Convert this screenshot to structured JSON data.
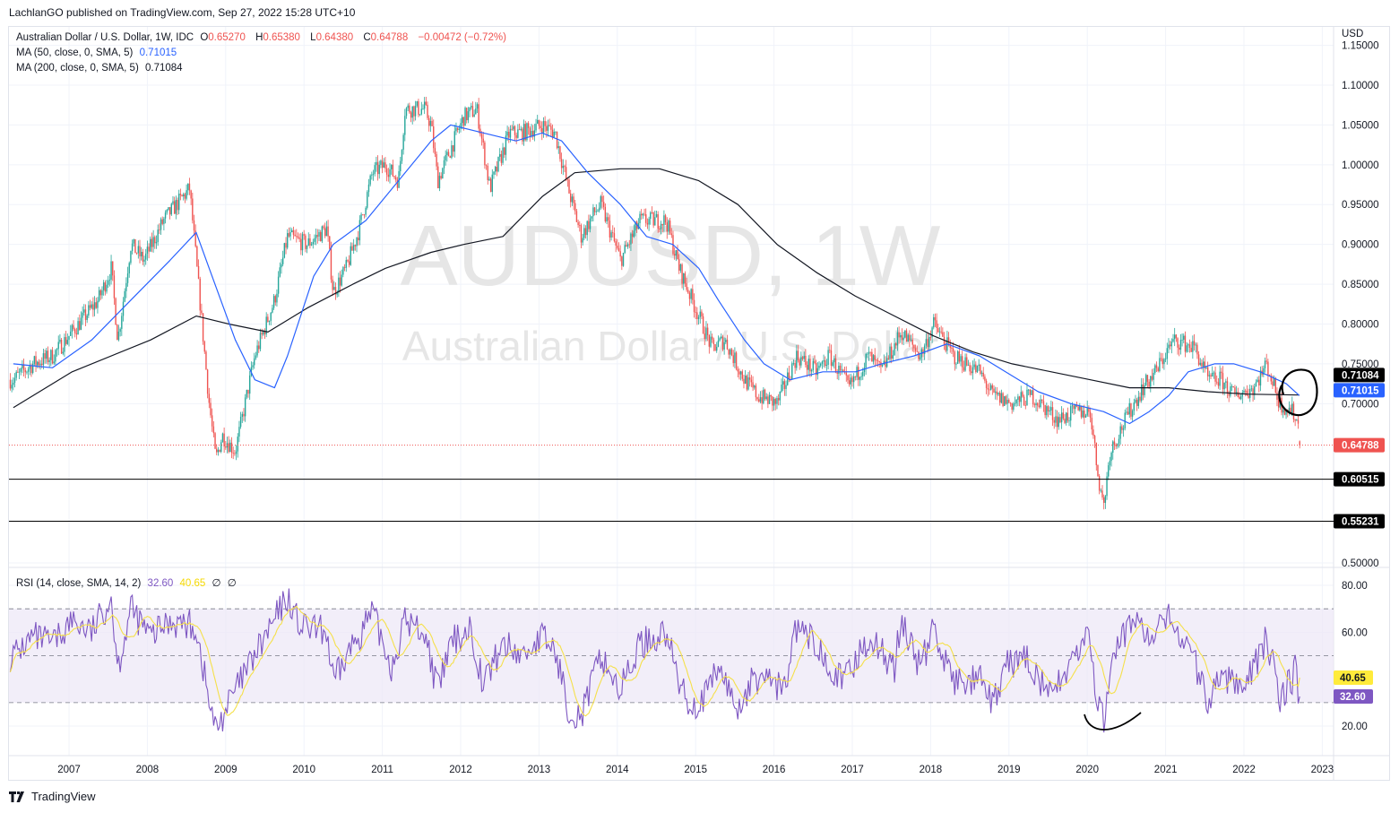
{
  "header": {
    "published": "LachlanGO published on TradingView.com, Sep 27, 2022 15:28 UTC+10"
  },
  "legend": {
    "symbol": "Australian Dollar / U.S. Dollar, 1W, IDC",
    "o_label": "O",
    "o": "0.65270",
    "h_label": "H",
    "h": "0.65380",
    "l_label": "L",
    "l": "0.64380",
    "c_label": "C",
    "c": "0.64788",
    "change": "−0.00472 (−0.72%)",
    "ma50_label": "MA (50, close, 0, SMA, 5)",
    "ma50_value": "0.71015",
    "ma200_label": "MA (200, close, 0, SMA, 5)",
    "ma200_value": "0.71084",
    "rsi_label": "RSI (14, close, SMA, 14, 2)",
    "rsi_value": "32.60",
    "rsi_ma_value": "40.65",
    "rsi_extra1": "∅",
    "rsi_extra2": "∅"
  },
  "watermark": {
    "line1": "AUDUSD, 1W",
    "line2": "Australian Dollar / U.S. Dollar"
  },
  "footer": {
    "brand": "TradingView"
  },
  "colors": {
    "up": "#26a69a",
    "down": "#ef5350",
    "ma50": "#2962ff",
    "ma200": "#131722",
    "rsi": "#7e57c2",
    "rsi_ma": "#f5e04a",
    "rsi_band": "#ede7f6"
  },
  "chart_data": [
    {
      "type": "candlestick",
      "title": "Australian Dollar / U.S. Dollar, 1W, IDC",
      "ylabel": "USD",
      "ylim": [
        0.5,
        1.15
      ],
      "yticks": [
        "1.15000",
        "1.10000",
        "1.05000",
        "1.00000",
        "0.95000",
        "0.90000",
        "0.85000",
        "0.80000",
        "0.75000",
        "0.70000",
        "0.50000"
      ],
      "xticks": [
        "2007",
        "2008",
        "2009",
        "2010",
        "2011",
        "2012",
        "2013",
        "2014",
        "2015",
        "2016",
        "2017",
        "2018",
        "2019",
        "2020",
        "2021",
        "2022",
        "2023"
      ],
      "grid": true,
      "close_path": [
        [
          "2006-04",
          0.73
        ],
        [
          "2006-07",
          0.75
        ],
        [
          "2006-10",
          0.76
        ],
        [
          "2007-01",
          0.79
        ],
        [
          "2007-05",
          0.83
        ],
        [
          "2007-07",
          0.87
        ],
        [
          "2007-08",
          0.78
        ],
        [
          "2007-10",
          0.9
        ],
        [
          "2007-12",
          0.88
        ],
        [
          "2008-03",
          0.93
        ],
        [
          "2008-07",
          0.97
        ],
        [
          "2008-08",
          0.88
        ],
        [
          "2008-10",
          0.7
        ],
        [
          "2008-11",
          0.63
        ],
        [
          "2008-12",
          0.66
        ],
        [
          "2009-02",
          0.64
        ],
        [
          "2009-03",
          0.68
        ],
        [
          "2009-05",
          0.76
        ],
        [
          "2009-08",
          0.83
        ],
        [
          "2009-10",
          0.91
        ],
        [
          "2010-01",
          0.9
        ],
        [
          "2010-04",
          0.92
        ],
        [
          "2010-05",
          0.84
        ],
        [
          "2010-07",
          0.87
        ],
        [
          "2010-09",
          0.92
        ],
        [
          "2010-11",
          0.99
        ],
        [
          "2011-01",
          1.0
        ],
        [
          "2011-03",
          0.98
        ],
        [
          "2011-04",
          1.07
        ],
        [
          "2011-07",
          1.07
        ],
        [
          "2011-08",
          1.05
        ],
        [
          "2011-09",
          0.98
        ],
        [
          "2011-11",
          1.02
        ],
        [
          "2012-01",
          1.06
        ],
        [
          "2012-03",
          1.07
        ],
        [
          "2012-05",
          0.97
        ],
        [
          "2012-08",
          1.04
        ],
        [
          "2012-10",
          1.04
        ],
        [
          "2013-01",
          1.05
        ],
        [
          "2013-03",
          1.04
        ],
        [
          "2013-05",
          0.97
        ],
        [
          "2013-07",
          0.91
        ],
        [
          "2013-09",
          0.94
        ],
        [
          "2013-10",
          0.95
        ],
        [
          "2014-01",
          0.88
        ],
        [
          "2014-04",
          0.93
        ],
        [
          "2014-08",
          0.93
        ],
        [
          "2014-10",
          0.87
        ],
        [
          "2015-01",
          0.81
        ],
        [
          "2015-03",
          0.77
        ],
        [
          "2015-05",
          0.78
        ],
        [
          "2015-08",
          0.73
        ],
        [
          "2015-10",
          0.71
        ],
        [
          "2016-01",
          0.7
        ],
        [
          "2016-04",
          0.76
        ],
        [
          "2016-07",
          0.74
        ],
        [
          "2016-09",
          0.76
        ],
        [
          "2016-12",
          0.72
        ],
        [
          "2017-03",
          0.76
        ],
        [
          "2017-05",
          0.74
        ],
        [
          "2017-08",
          0.79
        ],
        [
          "2017-11",
          0.76
        ],
        [
          "2018-01",
          0.8
        ],
        [
          "2018-04",
          0.76
        ],
        [
          "2018-08",
          0.74
        ],
        [
          "2018-10",
          0.71
        ],
        [
          "2019-01",
          0.7
        ],
        [
          "2019-04",
          0.71
        ],
        [
          "2019-08",
          0.68
        ],
        [
          "2019-11",
          0.69
        ],
        [
          "2020-01",
          0.69
        ],
        [
          "2020-02",
          0.62
        ],
        [
          "2020-03",
          0.57
        ],
        [
          "2020-04",
          0.64
        ],
        [
          "2020-07",
          0.69
        ],
        [
          "2020-09",
          0.72
        ],
        [
          "2020-11",
          0.74
        ],
        [
          "2021-01",
          0.77
        ],
        [
          "2021-02",
          0.78
        ],
        [
          "2021-05",
          0.77
        ],
        [
          "2021-07",
          0.73
        ],
        [
          "2021-09",
          0.73
        ],
        [
          "2021-11",
          0.71
        ],
        [
          "2022-02",
          0.72
        ],
        [
          "2022-04",
          0.75
        ],
        [
          "2022-06",
          0.7
        ],
        [
          "2022-08",
          0.69
        ],
        [
          "2022-09",
          0.67
        ],
        [
          "2022-09",
          0.64788
        ]
      ],
      "last": {
        "open": 0.6527,
        "high": 0.6538,
        "low": 0.6438,
        "close": 0.64788
      },
      "ma50": [
        [
          "2006-04",
          0.75
        ],
        [
          "2006-10",
          0.745
        ],
        [
          "2007-04",
          0.78
        ],
        [
          "2007-10",
          0.83
        ],
        [
          "2008-04",
          0.88
        ],
        [
          "2008-08",
          0.915
        ],
        [
          "2008-10",
          0.87
        ],
        [
          "2009-02",
          0.78
        ],
        [
          "2009-05",
          0.73
        ],
        [
          "2009-08",
          0.72
        ],
        [
          "2009-10",
          0.76
        ],
        [
          "2010-02",
          0.86
        ],
        [
          "2010-05",
          0.9
        ],
        [
          "2010-10",
          0.93
        ],
        [
          "2011-03",
          0.98
        ],
        [
          "2011-08",
          1.03
        ],
        [
          "2011-11",
          1.05
        ],
        [
          "2012-04",
          1.04
        ],
        [
          "2012-09",
          1.03
        ],
        [
          "2013-01",
          1.04
        ],
        [
          "2013-04",
          1.03
        ],
        [
          "2013-08",
          0.99
        ],
        [
          "2014-01",
          0.95
        ],
        [
          "2014-05",
          0.91
        ],
        [
          "2014-09",
          0.9
        ],
        [
          "2015-01",
          0.87
        ],
        [
          "2015-04",
          0.83
        ],
        [
          "2015-08",
          0.78
        ],
        [
          "2015-11",
          0.75
        ],
        [
          "2016-03",
          0.73
        ],
        [
          "2016-08",
          0.74
        ],
        [
          "2017-01",
          0.74
        ],
        [
          "2017-05",
          0.75
        ],
        [
          "2017-10",
          0.76
        ],
        [
          "2018-03",
          0.775
        ],
        [
          "2018-08",
          0.76
        ],
        [
          "2019-01",
          0.735
        ],
        [
          "2019-05",
          0.715
        ],
        [
          "2019-10",
          0.7
        ],
        [
          "2020-03",
          0.69
        ],
        [
          "2020-07",
          0.675
        ],
        [
          "2020-10",
          0.69
        ],
        [
          "2021-01",
          0.71
        ],
        [
          "2021-04",
          0.74
        ],
        [
          "2021-08",
          0.75
        ],
        [
          "2021-11",
          0.75
        ],
        [
          "2022-03",
          0.74
        ],
        [
          "2022-07",
          0.725
        ],
        [
          "2022-09",
          0.71015
        ]
      ],
      "ma200": [
        [
          "2006-04",
          0.695
        ],
        [
          "2007-01",
          0.74
        ],
        [
          "2008-01",
          0.78
        ],
        [
          "2008-08",
          0.81
        ],
        [
          "2009-01",
          0.8
        ],
        [
          "2009-07",
          0.79
        ],
        [
          "2010-01",
          0.82
        ],
        [
          "2010-08",
          0.85
        ],
        [
          "2011-01",
          0.87
        ],
        [
          "2011-08",
          0.89
        ],
        [
          "2012-01",
          0.9
        ],
        [
          "2012-07",
          0.91
        ],
        [
          "2013-01",
          0.96
        ],
        [
          "2013-06",
          0.99
        ],
        [
          "2014-01",
          0.995
        ],
        [
          "2014-07",
          0.995
        ],
        [
          "2015-01",
          0.98
        ],
        [
          "2015-07",
          0.95
        ],
        [
          "2016-01",
          0.9
        ],
        [
          "2016-07",
          0.865
        ],
        [
          "2017-01",
          0.835
        ],
        [
          "2017-07",
          0.81
        ],
        [
          "2018-01",
          0.785
        ],
        [
          "2018-07",
          0.765
        ],
        [
          "2019-01",
          0.75
        ],
        [
          "2019-07",
          0.74
        ],
        [
          "2020-01",
          0.73
        ],
        [
          "2020-07",
          0.72
        ],
        [
          "2021-01",
          0.72
        ],
        [
          "2021-07",
          0.715
        ],
        [
          "2022-01",
          0.712
        ],
        [
          "2022-09",
          0.71084
        ]
      ],
      "horizontal_levels": [
        0.60515,
        0.55231
      ],
      "price_badges": [
        {
          "value": "0.71084",
          "bg": "#000000",
          "fg": "#ffffff"
        },
        {
          "value": "0.71015",
          "bg": "#2962ff",
          "fg": "#ffffff"
        },
        {
          "value": "0.64788",
          "bg": "#ef5350",
          "fg": "#ffffff"
        },
        {
          "value": "0.60515",
          "bg": "#000000",
          "fg": "#ffffff"
        },
        {
          "value": "0.55231",
          "bg": "#000000",
          "fg": "#ffffff"
        }
      ],
      "annotations": [
        "hand-drawn circle around MA crossover (2022)"
      ]
    },
    {
      "type": "line",
      "title": "RSI (14, close, SMA, 14, 2)",
      "ylim": [
        10,
        85
      ],
      "yticks": [
        "80.00",
        "60.00",
        "20.00"
      ],
      "bands": [
        30,
        50,
        70
      ],
      "rsi": [
        [
          "2006-04",
          50
        ],
        [
          "2006-07",
          58
        ],
        [
          "2006-10",
          55
        ],
        [
          "2007-01",
          65
        ],
        [
          "2007-04",
          60
        ],
        [
          "2007-07",
          75
        ],
        [
          "2007-08",
          45
        ],
        [
          "2007-10",
          70
        ],
        [
          "2008-01",
          58
        ],
        [
          "2008-04",
          65
        ],
        [
          "2008-08",
          62
        ],
        [
          "2008-10",
          30
        ],
        [
          "2008-11",
          18
        ],
        [
          "2009-01",
          30
        ],
        [
          "2009-03",
          40
        ],
        [
          "2009-07",
          60
        ],
        [
          "2009-10",
          75
        ],
        [
          "2009-12",
          62
        ],
        [
          "2010-04",
          60
        ],
        [
          "2010-05",
          38
        ],
        [
          "2010-08",
          55
        ],
        [
          "2010-11",
          68
        ],
        [
          "2011-02",
          45
        ],
        [
          "2011-04",
          65
        ],
        [
          "2011-07",
          60
        ],
        [
          "2011-09",
          35
        ],
        [
          "2011-11",
          55
        ],
        [
          "2012-02",
          62
        ],
        [
          "2012-04",
          38
        ],
        [
          "2012-07",
          55
        ],
        [
          "2012-10",
          50
        ],
        [
          "2013-01",
          58
        ],
        [
          "2013-03",
          52
        ],
        [
          "2013-05",
          28
        ],
        [
          "2013-07",
          24
        ],
        [
          "2013-10",
          50
        ],
        [
          "2014-01",
          35
        ],
        [
          "2014-04",
          55
        ],
        [
          "2014-08",
          60
        ],
        [
          "2014-10",
          38
        ],
        [
          "2014-12",
          28
        ],
        [
          "2015-02",
          32
        ],
        [
          "2015-04",
          45
        ],
        [
          "2015-07",
          27
        ],
        [
          "2015-09",
          38
        ],
        [
          "2015-11",
          42
        ],
        [
          "2016-02",
          35
        ],
        [
          "2016-04",
          62
        ],
        [
          "2016-08",
          52
        ],
        [
          "2016-11",
          38
        ],
        [
          "2017-03",
          58
        ],
        [
          "2017-07",
          45
        ],
        [
          "2017-08",
          65
        ],
        [
          "2017-11",
          45
        ],
        [
          "2018-01",
          62
        ],
        [
          "2018-04",
          38
        ],
        [
          "2018-08",
          40
        ],
        [
          "2018-10",
          28
        ],
        [
          "2018-12",
          45
        ],
        [
          "2019-03",
          50
        ],
        [
          "2019-07",
          32
        ],
        [
          "2019-10",
          48
        ],
        [
          "2020-01",
          58
        ],
        [
          "2020-02",
          30
        ],
        [
          "2020-03",
          22
        ],
        [
          "2020-05",
          55
        ],
        [
          "2020-07",
          62
        ],
        [
          "2020-08",
          68
        ],
        [
          "2020-10",
          55
        ],
        [
          "2021-01",
          66
        ],
        [
          "2021-02",
          62
        ],
        [
          "2021-04",
          55
        ],
        [
          "2021-07",
          30
        ],
        [
          "2021-09",
          42
        ],
        [
          "2021-11",
          38
        ],
        [
          "2022-02",
          45
        ],
        [
          "2022-04",
          58
        ],
        [
          "2022-06",
          32
        ],
        [
          "2022-08",
          40
        ],
        [
          "2022-08",
          52
        ],
        [
          "2022-09",
          32.6
        ]
      ],
      "last_rsi": 32.6,
      "last_rsi_ma": 40.65,
      "rsi_badges": [
        {
          "value": "40.65",
          "bg": "#ffeb3b",
          "fg": "#131722"
        },
        {
          "value": "32.60",
          "bg": "#7e57c2",
          "fg": "#ffffff"
        }
      ],
      "annotations": [
        "hand-drawn arc under 2020 RSI low"
      ]
    }
  ]
}
